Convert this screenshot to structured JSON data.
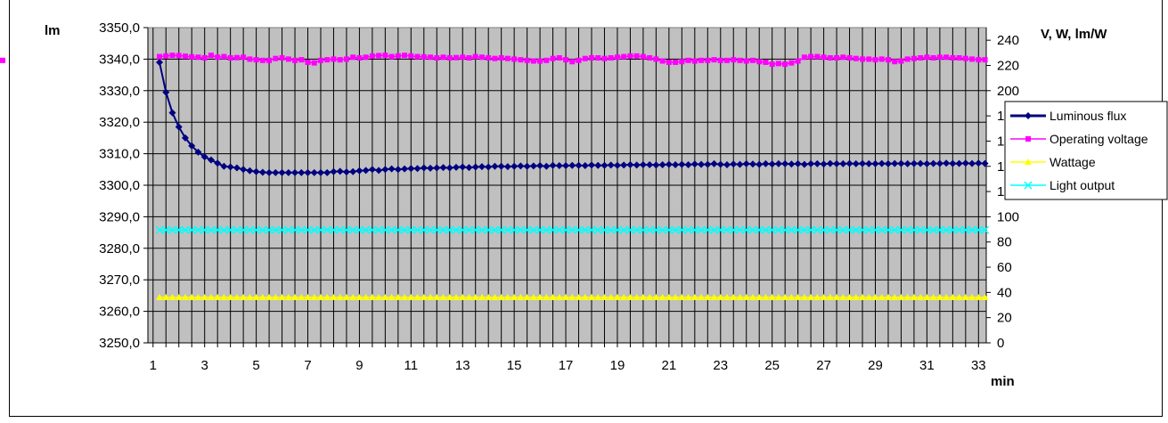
{
  "chart_data": {
    "type": "line",
    "title": "",
    "xlabel": "min",
    "ylabel_left": "lm",
    "ylabel_right": "V, W, lm/W",
    "x_ticks": [
      1,
      3,
      5,
      7,
      9,
      11,
      13,
      15,
      17,
      19,
      21,
      23,
      25,
      27,
      29,
      31,
      33
    ],
    "xlim": [
      0.8,
      33.3
    ],
    "y_left_ticks": [
      "3250,0",
      "3260,0",
      "3270,0",
      "3280,0",
      "3290,0",
      "3300,0",
      "3310,0",
      "3320,0",
      "3330,0",
      "3340,0",
      "3350,0"
    ],
    "y_left_lim": [
      3250,
      3350
    ],
    "y_right_ticks": [
      0,
      20,
      40,
      60,
      80,
      100,
      120,
      140,
      160,
      180,
      200,
      220,
      240
    ],
    "y_right_lim": [
      0,
      250
    ],
    "grid": true,
    "legend_position": "right",
    "x_start": 1.25,
    "x_step": 0.25,
    "series": [
      {
        "name": "Luminous flux",
        "axis": "left",
        "color": "#000080",
        "marker": "diamond",
        "values": [
          3339.0,
          3329.5,
          3323.0,
          3318.5,
          3315.0,
          3312.5,
          3310.5,
          3309.0,
          3308.0,
          3307.0,
          3306.0,
          3305.8,
          3305.5,
          3305.0,
          3304.6,
          3304.3,
          3304.1,
          3304.0,
          3304.0,
          3304.0,
          3304.0,
          3304.0,
          3304.0,
          3304.0,
          3304.0,
          3304.0,
          3304.0,
          3304.3,
          3304.4,
          3304.2,
          3304.3,
          3304.6,
          3304.7,
          3305.0,
          3304.7,
          3305.0,
          3305.2,
          3305.0,
          3305.2,
          3305.3,
          3305.3,
          3305.5,
          3305.4,
          3305.5,
          3305.6,
          3305.5,
          3305.7,
          3305.8,
          3305.6,
          3305.8,
          3305.9,
          3305.8,
          3306.0,
          3306.0,
          3305.9,
          3306.0,
          3306.1,
          3306.0,
          3306.1,
          3306.2,
          3306.0,
          3306.3,
          3306.2,
          3306.2,
          3306.3,
          3306.3,
          3306.2,
          3306.4,
          3306.3,
          3306.3,
          3306.4,
          3306.3,
          3306.4,
          3306.5,
          3306.4,
          3306.5,
          3306.5,
          3306.4,
          3306.5,
          3306.6,
          3306.5,
          3306.6,
          3306.5,
          3306.7,
          3306.6,
          3306.6,
          3306.8,
          3306.6,
          3306.5,
          3306.7,
          3306.6,
          3306.8,
          3306.7,
          3306.6,
          3306.8,
          3306.7,
          3306.8,
          3306.8,
          3306.7,
          3306.8,
          3306.6,
          3306.8,
          3306.8,
          3306.7,
          3306.9,
          3306.8,
          3306.8,
          3306.9,
          3306.8,
          3306.9,
          3306.8,
          3306.8,
          3306.9,
          3306.8,
          3306.9,
          3306.9,
          3306.8,
          3306.9,
          3306.9,
          3306.8,
          3306.9,
          3306.9,
          3307.0,
          3306.9,
          3306.9,
          3307.0,
          3306.9,
          3307.0,
          3306.9
        ]
      },
      {
        "name": "Operating voltage",
        "axis": "right",
        "color": "#ff00ff",
        "marker": "square",
        "values": [
          227.0,
          227.5,
          228.0,
          227.8,
          227.3,
          226.8,
          226.5,
          226.0,
          228.0,
          226.5,
          227.0,
          226.0,
          226.2,
          226.5,
          225.0,
          224.5,
          224.0,
          224.0,
          225.5,
          226.0,
          225.0,
          224.0,
          224.5,
          222.5,
          222.0,
          224.0,
          224.5,
          225.0,
          224.5,
          225.0,
          226.5,
          226.0,
          226.5,
          227.5,
          227.8,
          228.0,
          227.0,
          227.5,
          228.0,
          227.5,
          227.0,
          226.8,
          226.5,
          226.0,
          226.5,
          226.0,
          226.2,
          226.5,
          226.0,
          227.0,
          226.5,
          226.0,
          225.5,
          226.0,
          225.5,
          225.0,
          224.5,
          224.0,
          223.5,
          223.5,
          224.0,
          225.5,
          226.0,
          224.5,
          223.0,
          224.0,
          225.5,
          226.0,
          226.0,
          225.5,
          226.0,
          226.5,
          227.0,
          227.5,
          227.5,
          227.0,
          226.0,
          225.0,
          223.5,
          222.5,
          222.5,
          223.0,
          224.0,
          223.5,
          224.0,
          224.0,
          224.5,
          224.0,
          224.0,
          224.5,
          224.0,
          223.5,
          224.0,
          223.0,
          222.5,
          221.0,
          221.5,
          221.0,
          222.0,
          223.5,
          226.5,
          227.0,
          227.0,
          226.5,
          226.0,
          226.0,
          226.5,
          226.0,
          225.5,
          225.0,
          225.0,
          224.5,
          225.0,
          224.5,
          223.0,
          223.5,
          225.0,
          225.5,
          226.0,
          226.5,
          226.0,
          226.5,
          226.5,
          226.0,
          226.0,
          225.5,
          225.0,
          224.5,
          224.5,
          224.0
        ]
      },
      {
        "name": "Wattage",
        "axis": "right",
        "color": "#ffff00",
        "marker": "triangle",
        "constant": 36
      },
      {
        "name": "Light output",
        "axis": "right",
        "color": "#00ffff",
        "marker": "x",
        "constant": 89.5
      }
    ]
  }
}
